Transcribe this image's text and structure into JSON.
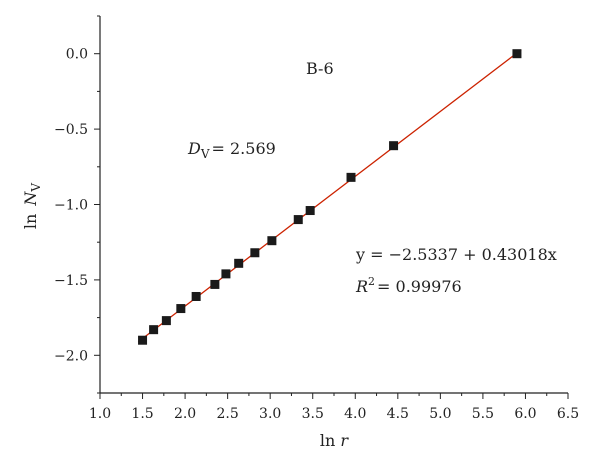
{
  "chart_data": {
    "type": "scatter",
    "title": "",
    "xlabel": "ln r",
    "ylabel": "ln N_V",
    "xlim": [
      1.0,
      6.5
    ],
    "ylim": [
      -2.25,
      0.25
    ],
    "x_ticks": [
      "1.0",
      "1.5",
      "2.0",
      "2.5",
      "3.0",
      "3.5",
      "4.0",
      "4.5",
      "5.0",
      "5.5",
      "6.0",
      "6.5"
    ],
    "y_ticks": [
      "0.0",
      "-0.5",
      "-1.0",
      "-1.5",
      "-2.0"
    ],
    "grid": false,
    "series": [
      {
        "x": [
          1.5,
          1.63,
          1.78,
          1.95,
          2.13,
          2.35,
          2.48,
          2.63,
          2.82,
          3.02,
          3.33,
          3.47,
          3.95,
          4.45,
          5.9
        ],
        "y": [
          -1.9,
          -1.83,
          -1.77,
          -1.69,
          -1.61,
          -1.53,
          -1.46,
          -1.39,
          -1.32,
          -1.24,
          -1.1,
          -1.04,
          -0.82,
          -0.61,
          0.0
        ],
        "color": "#1a1a1a",
        "marker": "square"
      }
    ],
    "fit_line": {
      "intercept": -2.5337,
      "slope": 0.43018,
      "x_range": [
        1.45,
        5.95
      ],
      "color": "#cc2200"
    },
    "annotations": {
      "sample_label": "B-6",
      "dv_symbol": "D",
      "dv_subscript": "V",
      "dv_value": "= 2.569",
      "equation": "y = −2.5337 + 0.43018x",
      "r2_symbol": "R",
      "r2_super": "2",
      "r2_value": "= 0.99976"
    },
    "axis_text": {
      "x_ln": "ln",
      "x_var": "r",
      "y_ln": "ln",
      "y_var": "N",
      "y_sub": "V"
    }
  }
}
